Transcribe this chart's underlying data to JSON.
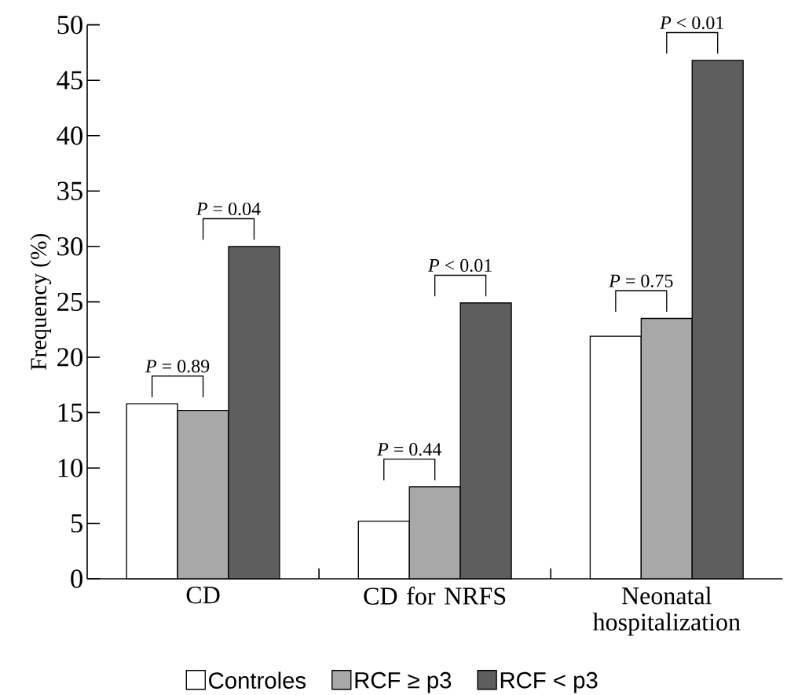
{
  "chart_data": {
    "type": "bar",
    "ylabel": "Frequency (%)",
    "categories": [
      "CD",
      "CD for NRFS",
      "Neonatal hospitalization"
    ],
    "series": [
      {
        "name": "Controles",
        "color": "#ffffff",
        "values": [
          15.8,
          5.2,
          21.9
        ]
      },
      {
        "name": "RCF ≥ p3",
        "color": "#a8a8a8",
        "values": [
          15.2,
          8.3,
          23.5
        ]
      },
      {
        "name": "RCF < p3",
        "color": "#5e5e5e",
        "values": [
          30.0,
          24.9,
          46.8
        ]
      }
    ],
    "ylim": [
      0,
      50
    ],
    "yticks": [
      0,
      5,
      10,
      15,
      20,
      25,
      30,
      35,
      40,
      45,
      50
    ],
    "legend": "bottom",
    "annotations": [
      "*P* = 0.89",
      "*P* = 0.04",
      "*P* = 0.44",
      "*P* < 0.01",
      "*P* = 0.75",
      "*P* < 0.01"
    ]
  }
}
